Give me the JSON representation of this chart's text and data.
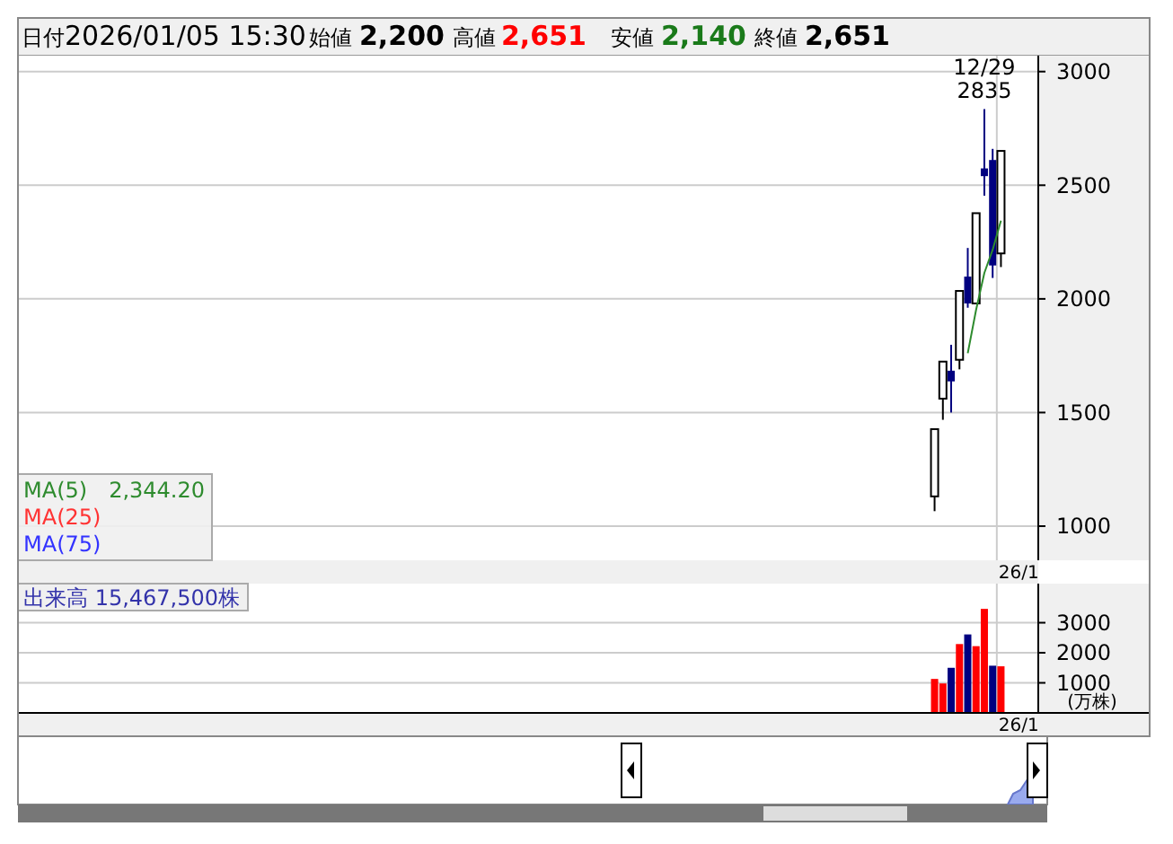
{
  "chart_data": [
    {
      "type": "candlestick",
      "categories": [
        null,
        null,
        null,
        null,
        null,
        null,
        null,
        null,
        null,
        null,
        null,
        null,
        null,
        null,
        null,
        null,
        null,
        null,
        null,
        null,
        null,
        null,
        null,
        null,
        null,
        null,
        null,
        null,
        null,
        null,
        null,
        null,
        null,
        null,
        null,
        null,
        null,
        null,
        null,
        null,
        null,
        null,
        null,
        null,
        null,
        null,
        null,
        null,
        null,
        null,
        null,
        null,
        null,
        null,
        null,
        null,
        null,
        null,
        null,
        null,
        null,
        null,
        null,
        null,
        null,
        null,
        null,
        null,
        null,
        null,
        null,
        null,
        null,
        null,
        null,
        null,
        null,
        null,
        null,
        null,
        null,
        null,
        null,
        null,
        null,
        null,
        null,
        null,
        null,
        null,
        null,
        null,
        null,
        null,
        null,
        null,
        null,
        null,
        null,
        null,
        null,
        null,
        null,
        null,
        null,
        null,
        null,
        null,
        null,
        null,
        null,
        null,
        null,
        null,
        null,
        null,
        null,
        null,
        null,
        null,
        null,
        null,
        null
      ],
      "ohlc": [
        null,
        null,
        null,
        null,
        null,
        null,
        null,
        null,
        null,
        null,
        null,
        null,
        null,
        null,
        null,
        null,
        null,
        null,
        null,
        null,
        null,
        null,
        null,
        null,
        null,
        null,
        null,
        null,
        null,
        null,
        null,
        null,
        null,
        null,
        null,
        null,
        null,
        null,
        null,
        null,
        null,
        null,
        null,
        null,
        null,
        null,
        null,
        null,
        null,
        null,
        null,
        null,
        null,
        null,
        null,
        null,
        null,
        null,
        null,
        null,
        null,
        null,
        null,
        null,
        null,
        null,
        null,
        null,
        null,
        null,
        null,
        null,
        null,
        null,
        null,
        null,
        null,
        null,
        null,
        null,
        null,
        null,
        null,
        null,
        null,
        null,
        null,
        null,
        null,
        null,
        null,
        null,
        null,
        null,
        null,
        null,
        null,
        null,
        null,
        null,
        null,
        null,
        null,
        null,
        null,
        null,
        null,
        null,
        null,
        null,
        [
          1131,
          1427,
          1066,
          1427
        ],
        [
          1561,
          1724,
          1468,
          1724
        ],
        [
          1684,
          1798,
          1500,
          1637
        ],
        [
          1732,
          2035,
          1690,
          2035
        ],
        [
          2098,
          2224,
          1961,
          1980
        ],
        [
          1980,
          2377,
          1980,
          2377
        ],
        [
          2574,
          2835,
          2454,
          2540
        ],
        [
          2611,
          2660,
          2092,
          2147
        ],
        [
          2200,
          2651,
          2140,
          2651
        ],
        null,
        null,
        null,
        null
      ],
      "colors": [
        null,
        null,
        null,
        null,
        null,
        null,
        null,
        null,
        null,
        null,
        null,
        null,
        null,
        null,
        null,
        null,
        null,
        null,
        null,
        null,
        null,
        null,
        null,
        null,
        null,
        null,
        null,
        null,
        null,
        null,
        null,
        null,
        null,
        null,
        null,
        null,
        null,
        null,
        null,
        null,
        null,
        null,
        null,
        null,
        null,
        null,
        null,
        null,
        null,
        null,
        null,
        null,
        null,
        null,
        null,
        null,
        null,
        null,
        null,
        null,
        null,
        null,
        null,
        null,
        null,
        null,
        null,
        null,
        null,
        null,
        null,
        null,
        null,
        null,
        null,
        null,
        null,
        null,
        null,
        null,
        null,
        null,
        null,
        null,
        null,
        null,
        null,
        null,
        null,
        null,
        null,
        null,
        null,
        null,
        null,
        null,
        null,
        null,
        null,
        null,
        null,
        null,
        null,
        null,
        null,
        null,
        null,
        null,
        null,
        null,
        "#ffffff",
        "#ffffff",
        "#000080",
        "#ffffff",
        "#000080",
        "#ffffff",
        "#000080",
        "#000080",
        "#ffffff",
        null,
        null,
        null,
        null
      ],
      "series": [
        {
          "type": "line",
          "name": "MA(5)",
          "color": "#2e8b2e",
          "values": [
            null,
            null,
            null,
            null,
            null,
            null,
            null,
            null,
            null,
            null,
            null,
            null,
            null,
            null,
            null,
            null,
            null,
            null,
            null,
            null,
            null,
            null,
            null,
            null,
            null,
            null,
            null,
            null,
            null,
            null,
            null,
            null,
            null,
            null,
            null,
            null,
            null,
            null,
            null,
            null,
            null,
            null,
            null,
            null,
            null,
            null,
            null,
            null,
            null,
            null,
            null,
            null,
            null,
            null,
            null,
            null,
            null,
            null,
            null,
            null,
            null,
            null,
            null,
            null,
            null,
            null,
            null,
            null,
            null,
            null,
            null,
            null,
            null,
            null,
            null,
            null,
            null,
            null,
            null,
            null,
            null,
            null,
            null,
            null,
            null,
            null,
            null,
            null,
            null,
            null,
            null,
            null,
            null,
            null,
            null,
            null,
            null,
            null,
            null,
            null,
            null,
            null,
            null,
            null,
            null,
            null,
            null,
            null,
            null,
            null,
            null,
            null,
            null,
            null,
            1761,
            1951,
            2114,
            2216,
            2344.2,
            null,
            null,
            null,
            null
          ]
        },
        {
          "type": "line",
          "name": "MA(25)",
          "color": "#ff3333",
          "values": [
            null,
            null,
            null,
            null,
            null,
            null,
            null,
            null,
            null,
            null,
            null,
            null,
            null,
            null,
            null,
            null,
            null,
            null,
            null,
            null,
            null,
            null,
            null,
            null,
            null,
            null,
            null,
            null,
            null,
            null,
            null,
            null,
            null,
            null,
            null,
            null,
            null,
            null,
            null,
            null,
            null,
            null,
            null,
            null,
            null,
            null,
            null,
            null,
            null,
            null,
            null,
            null,
            null,
            null,
            null,
            null,
            null,
            null,
            null,
            null,
            null,
            null,
            null,
            null,
            null,
            null,
            null,
            null,
            null,
            null,
            null,
            null,
            null,
            null,
            null,
            null,
            null,
            null,
            null,
            null,
            null,
            null,
            null,
            null,
            null,
            null,
            null,
            null,
            null,
            null,
            null,
            null,
            null,
            null,
            null,
            null,
            null,
            null,
            null,
            null,
            null,
            null,
            null,
            null,
            null,
            null,
            null,
            null,
            null,
            null,
            null,
            null,
            null,
            null,
            null,
            null,
            null,
            null,
            null,
            null,
            null,
            null,
            null
          ]
        },
        {
          "type": "line",
          "name": "MA(75)",
          "color": "#3333ff",
          "values": [
            null,
            null,
            null,
            null,
            null,
            null,
            null,
            null,
            null,
            null,
            null,
            null,
            null,
            null,
            null,
            null,
            null,
            null,
            null,
            null,
            null,
            null,
            null,
            null,
            null,
            null,
            null,
            null,
            null,
            null,
            null,
            null,
            null,
            null,
            null,
            null,
            null,
            null,
            null,
            null,
            null,
            null,
            null,
            null,
            null,
            null,
            null,
            null,
            null,
            null,
            null,
            null,
            null,
            null,
            null,
            null,
            null,
            null,
            null,
            null,
            null,
            null,
            null,
            null,
            null,
            null,
            null,
            null,
            null,
            null,
            null,
            null,
            null,
            null,
            null,
            null,
            null,
            null,
            null,
            null,
            null,
            null,
            null,
            null,
            null,
            null,
            null,
            null,
            null,
            null,
            null,
            null,
            null,
            null,
            null,
            null,
            null,
            null,
            null,
            null,
            null,
            null,
            null,
            null,
            null,
            null,
            null,
            null,
            null,
            null,
            null,
            null,
            null,
            null,
            null,
            null,
            null,
            null,
            null,
            null,
            null,
            null,
            null
          ]
        }
      ],
      "tick_labels": "y",
      "ref_lines": [
        {
          "axis": "x",
          "label": "26/1"
        }
      ],
      "ylim": [
        850,
        3070
      ],
      "yticks": [
        1000,
        1500,
        2000,
        2500,
        3000
      ],
      "grid": true,
      "annotations": [
        "日付",
        "2026/01/05 15:30",
        "始値",
        "2,200",
        "高値",
        "2,651",
        "安値",
        "2,140",
        "終値",
        "2,651",
        "2,344.20",
        "12/29",
        "2835"
      ]
    },
    {
      "type": "bar",
      "categories": [
        null,
        null,
        null,
        null,
        null,
        null,
        null,
        null,
        null,
        null,
        null,
        null,
        null,
        null,
        null,
        null,
        null,
        null,
        null,
        null,
        null,
        null,
        null,
        null,
        null,
        null,
        null,
        null,
        null,
        null,
        null,
        null,
        null,
        null,
        null,
        null,
        null,
        null,
        null,
        null,
        null,
        null,
        null,
        null,
        null,
        null,
        null,
        null,
        null,
        null,
        null,
        null,
        null,
        null,
        null,
        null,
        null,
        null,
        null,
        null,
        null,
        null,
        null,
        null,
        null,
        null,
        null,
        null,
        null,
        null,
        null,
        null,
        null,
        null,
        null,
        null,
        null,
        null,
        null,
        null,
        null,
        null,
        null,
        null,
        null,
        null,
        null,
        null,
        null,
        null,
        null,
        null,
        null,
        null,
        null,
        null,
        null,
        null,
        null,
        null,
        null,
        null,
        null,
        null,
        null,
        null,
        null,
        null,
        null,
        null,
        null,
        null,
        null,
        null,
        null,
        null,
        null,
        null,
        null,
        null,
        null,
        null,
        null
      ],
      "values": [
        null,
        null,
        null,
        null,
        null,
        null,
        null,
        null,
        null,
        null,
        null,
        null,
        null,
        null,
        null,
        null,
        null,
        null,
        null,
        null,
        null,
        null,
        null,
        null,
        null,
        null,
        null,
        null,
        null,
        null,
        null,
        null,
        null,
        null,
        null,
        null,
        null,
        null,
        null,
        null,
        null,
        null,
        null,
        null,
        null,
        null,
        null,
        null,
        null,
        null,
        null,
        null,
        null,
        null,
        null,
        null,
        null,
        null,
        null,
        null,
        null,
        null,
        null,
        null,
        null,
        null,
        null,
        null,
        null,
        null,
        null,
        null,
        null,
        null,
        null,
        null,
        null,
        null,
        null,
        null,
        null,
        null,
        null,
        null,
        null,
        null,
        null,
        null,
        null,
        null,
        null,
        null,
        null,
        null,
        null,
        null,
        null,
        null,
        null,
        null,
        null,
        null,
        null,
        null,
        null,
        null,
        null,
        null,
        null,
        null,
        1130,
        980,
        1500,
        2290,
        2610,
        2220,
        3460,
        1570,
        1550,
        null,
        null,
        null,
        null
      ],
      "colors": [
        null,
        null,
        null,
        null,
        null,
        null,
        null,
        null,
        null,
        null,
        null,
        null,
        null,
        null,
        null,
        null,
        null,
        null,
        null,
        null,
        null,
        null,
        null,
        null,
        null,
        null,
        null,
        null,
        null,
        null,
        null,
        null,
        null,
        null,
        null,
        null,
        null,
        null,
        null,
        null,
        null,
        null,
        null,
        null,
        null,
        null,
        null,
        null,
        null,
        null,
        null,
        null,
        null,
        null,
        null,
        null,
        null,
        null,
        null,
        null,
        null,
        null,
        null,
        null,
        null,
        null,
        null,
        null,
        null,
        null,
        null,
        null,
        null,
        null,
        null,
        null,
        null,
        null,
        null,
        null,
        null,
        null,
        null,
        null,
        null,
        null,
        null,
        null,
        null,
        null,
        null,
        null,
        null,
        null,
        null,
        null,
        null,
        null,
        null,
        null,
        null,
        null,
        null,
        null,
        null,
        null,
        null,
        null,
        null,
        null,
        "#ff0000",
        "#ff0000",
        "#000080",
        "#ff0000",
        "#000080",
        "#ff0000",
        "#ff0000",
        "#000080",
        "#ff0000",
        null,
        null,
        null,
        null
      ],
      "tick_labels": "y",
      "ref_lines": [
        {
          "axis": "x",
          "label": "26/1"
        }
      ],
      "ylim": [
        0,
        4300
      ],
      "yticks": [
        1000,
        2000,
        3000
      ],
      "grid": true,
      "ylabel": "(万株)",
      "annotations": [
        "出来高  15,467,500株"
      ]
    }
  ]
}
